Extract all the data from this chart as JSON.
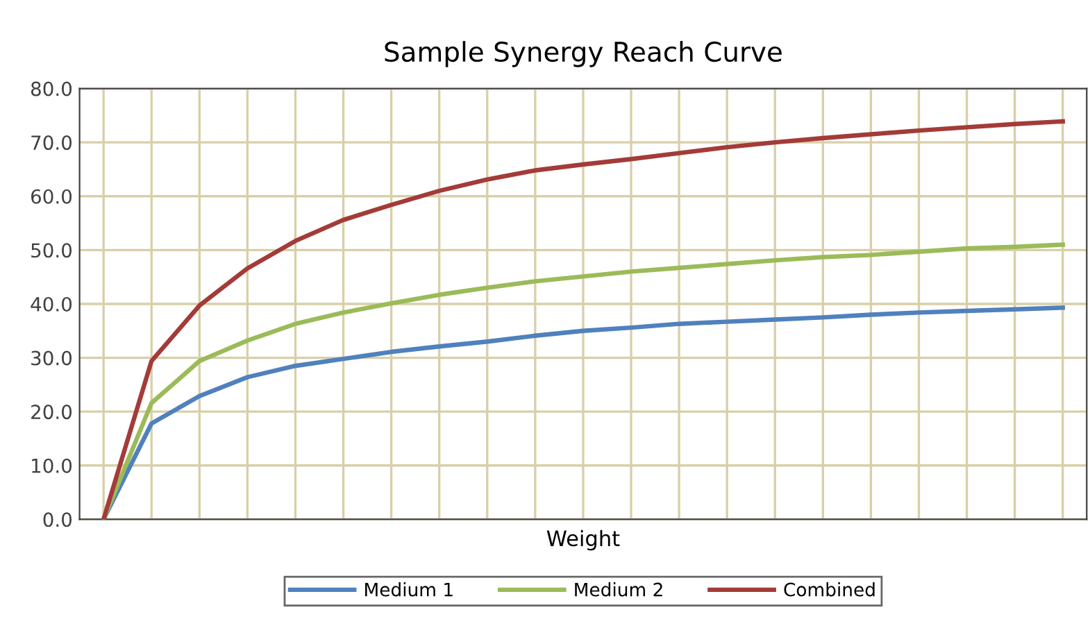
{
  "chart_data": {
    "type": "line",
    "title": "Sample Synergy Reach Curve",
    "xlabel": "Weight",
    "categories": [
      null,
      null,
      null,
      null,
      null,
      null,
      null,
      null,
      null,
      null,
      null,
      null,
      null,
      null,
      null,
      null,
      null,
      null,
      null,
      null,
      null
    ],
    "series": [
      {
        "name": "Medium 1",
        "color": "#4f81bd",
        "values": [
          0,
          17.8,
          22.9,
          26.4,
          28.5,
          29.8,
          31.1,
          32.1,
          33.0,
          34.1,
          35.0,
          35.6,
          36.3,
          36.7,
          37.1,
          37.5,
          38.0,
          38.4,
          38.7,
          39.0,
          39.3
        ]
      },
      {
        "name": "Medium 2",
        "color": "#9bbb59",
        "values": [
          0,
          21.6,
          29.4,
          33.2,
          36.3,
          38.4,
          40.1,
          41.7,
          43.0,
          44.2,
          45.1,
          46.0,
          46.7,
          47.4,
          48.1,
          48.7,
          49.1,
          49.7,
          50.3,
          50.6,
          51.0
        ]
      },
      {
        "name": "Combined",
        "color": "#a33b38",
        "values": [
          0,
          29.4,
          39.7,
          46.6,
          51.7,
          55.6,
          58.4,
          61.0,
          63.1,
          64.8,
          65.9,
          66.9,
          68.0,
          69.1,
          70.0,
          70.8,
          71.5,
          72.2,
          72.8,
          73.4,
          73.9
        ]
      }
    ],
    "ylim": [
      0,
      80
    ],
    "yticks": [
      {
        "value": 0,
        "label": "0.0"
      },
      {
        "value": 10,
        "label": "10.0"
      },
      {
        "value": 20,
        "label": "20.0"
      },
      {
        "value": 30,
        "label": "30.0"
      },
      {
        "value": 40,
        "label": "40.0"
      },
      {
        "value": 50,
        "label": "50.0"
      },
      {
        "value": 60,
        "label": "60.0"
      },
      {
        "value": 70,
        "label": "70.0"
      },
      {
        "value": 80,
        "label": "80.0"
      }
    ],
    "grid": true,
    "legend": "bottom",
    "marker": "none",
    "line_style": "solid"
  }
}
